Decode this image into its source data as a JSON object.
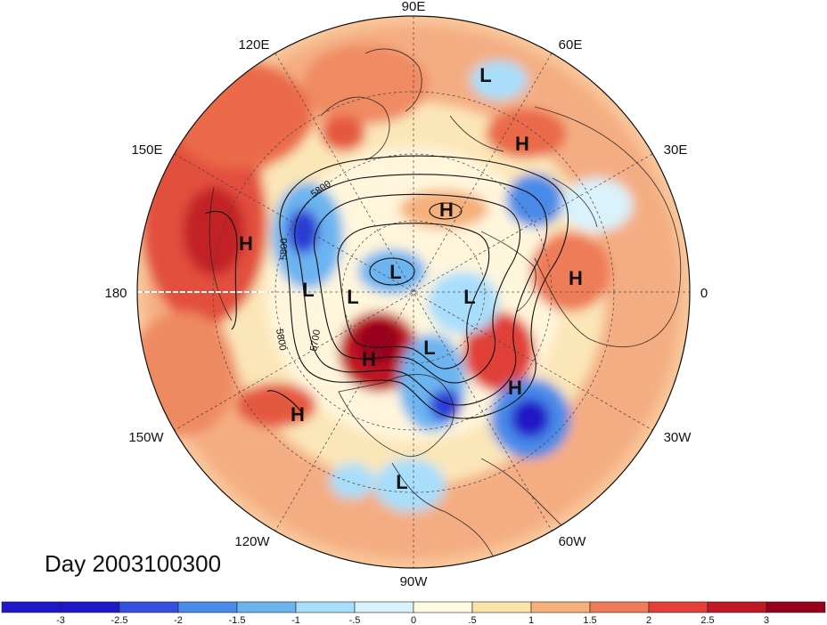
{
  "title": "Day 2003100300",
  "longitude_labels": {
    "e90": "90E",
    "e60": "60E",
    "e30": "30E",
    "zero": "0",
    "w30": "30W",
    "w60": "60W",
    "w90": "90W",
    "w120": "120W",
    "w150": "150W",
    "d180": "180",
    "e150": "150E",
    "e120": "120E"
  },
  "contour_labels": {
    "c5800a": "5800",
    "c5800b": "5800",
    "c5700": "5700",
    "c5800c": "5800"
  },
  "pressure_centers": [
    {
      "id": "l-siberia",
      "label": "L"
    },
    {
      "id": "h-east-europe",
      "label": "H"
    },
    {
      "id": "h-arctic",
      "label": "H"
    },
    {
      "id": "h-pacific-west",
      "label": "H"
    },
    {
      "id": "l-polar-a",
      "label": "L"
    },
    {
      "id": "l-polar-b",
      "label": "L"
    },
    {
      "id": "l-polar-c",
      "label": "L"
    },
    {
      "id": "l-greenland",
      "label": "L"
    },
    {
      "id": "h-europe",
      "label": "H"
    },
    {
      "id": "h-alaska",
      "label": "H"
    },
    {
      "id": "l-hudson",
      "label": "L"
    },
    {
      "id": "h-atlantic",
      "label": "H"
    },
    {
      "id": "h-pacific-east",
      "label": "H"
    },
    {
      "id": "l-gulf",
      "label": "L"
    }
  ],
  "colorbar": {
    "colors": [
      "#2018c8",
      "#3550e0",
      "#4a8ae8",
      "#6cb4f0",
      "#a8defa",
      "#daf2fc",
      "#fffae0",
      "#fbe2a8",
      "#f6b07c",
      "#ee7c58",
      "#e04038",
      "#c01824",
      "#98001c"
    ],
    "tick_labels": [
      "-3",
      "-2.5",
      "-2",
      "-1.5",
      "-1",
      "-.5",
      "0",
      ".5",
      "1",
      "1.5",
      "2",
      "2.5",
      "3"
    ]
  },
  "colors": {
    "cold_strong": "#2a3bd6",
    "cold": "#6cb4f0",
    "cold_light": "#cfeefc",
    "neutral": "#fffbe8",
    "warm_light": "#fbe3b0",
    "warm": "#f3a077",
    "warm_strong": "#e14b3b",
    "hot": "#b81522"
  }
}
